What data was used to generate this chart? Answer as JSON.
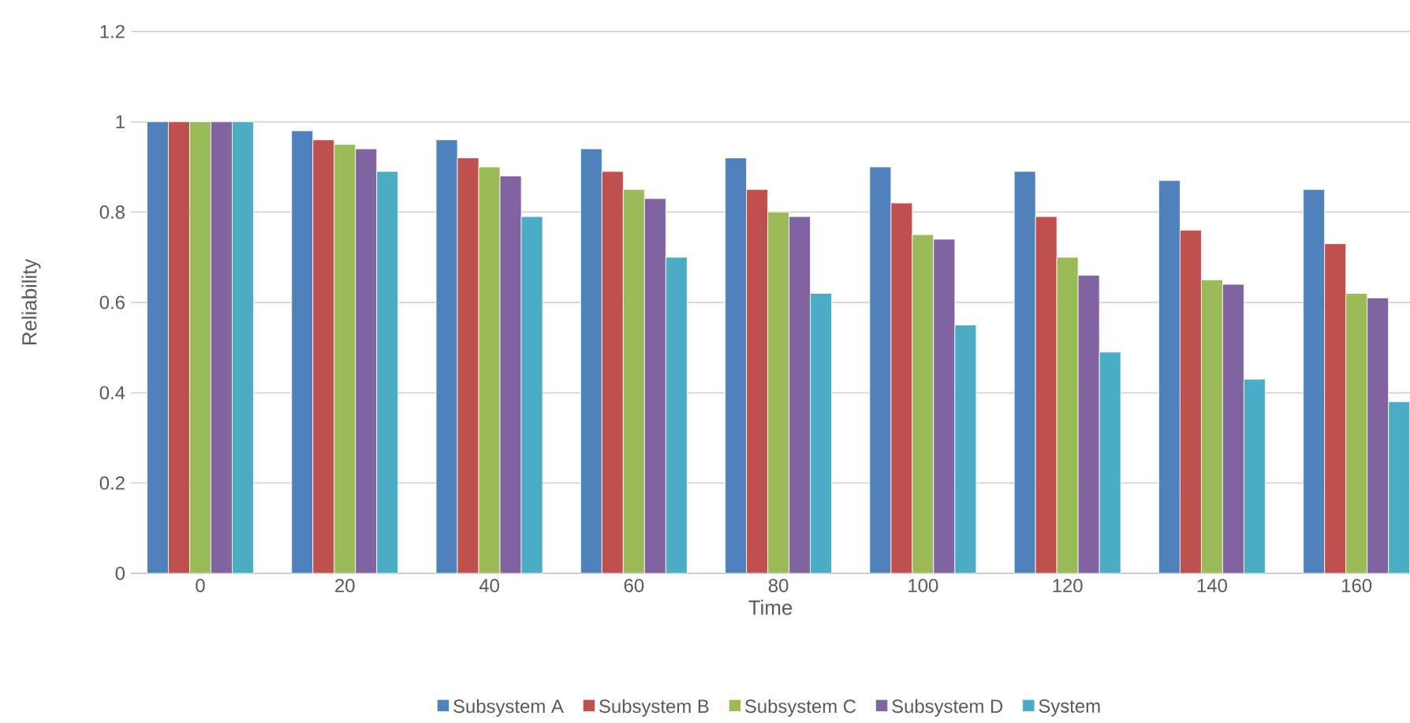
{
  "chart_data": {
    "type": "bar",
    "xlabel": "Time",
    "ylabel": "Reliability",
    "categories": [
      "0",
      "20",
      "40",
      "60",
      "80",
      "100",
      "120",
      "140",
      "160"
    ],
    "series": [
      {
        "name": "Subsystem A",
        "color": "#4f81bd",
        "values": [
          1,
          0.98,
          0.96,
          0.94,
          0.92,
          0.9,
          0.89,
          0.87,
          0.85
        ]
      },
      {
        "name": "Subsystem B",
        "color": "#c0504d",
        "values": [
          1,
          0.96,
          0.92,
          0.89,
          0.85,
          0.82,
          0.79,
          0.76,
          0.73
        ]
      },
      {
        "name": "Subsystem C",
        "color": "#9bbb59",
        "values": [
          1,
          0.95,
          0.9,
          0.85,
          0.8,
          0.75,
          0.7,
          0.65,
          0.62
        ]
      },
      {
        "name": "Subsystem D",
        "color": "#8064a2",
        "values": [
          1,
          0.94,
          0.88,
          0.83,
          0.79,
          0.74,
          0.66,
          0.64,
          0.61
        ]
      },
      {
        "name": "System",
        "color": "#4bacc6",
        "values": [
          1,
          0.89,
          0.79,
          0.7,
          0.62,
          0.55,
          0.49,
          0.43,
          0.38
        ]
      }
    ],
    "ylim": [
      0,
      1.2
    ],
    "yticks": [
      0,
      0.2,
      0.4,
      0.6,
      0.8,
      1,
      1.2
    ],
    "grid": "y",
    "legend": "bottom"
  }
}
